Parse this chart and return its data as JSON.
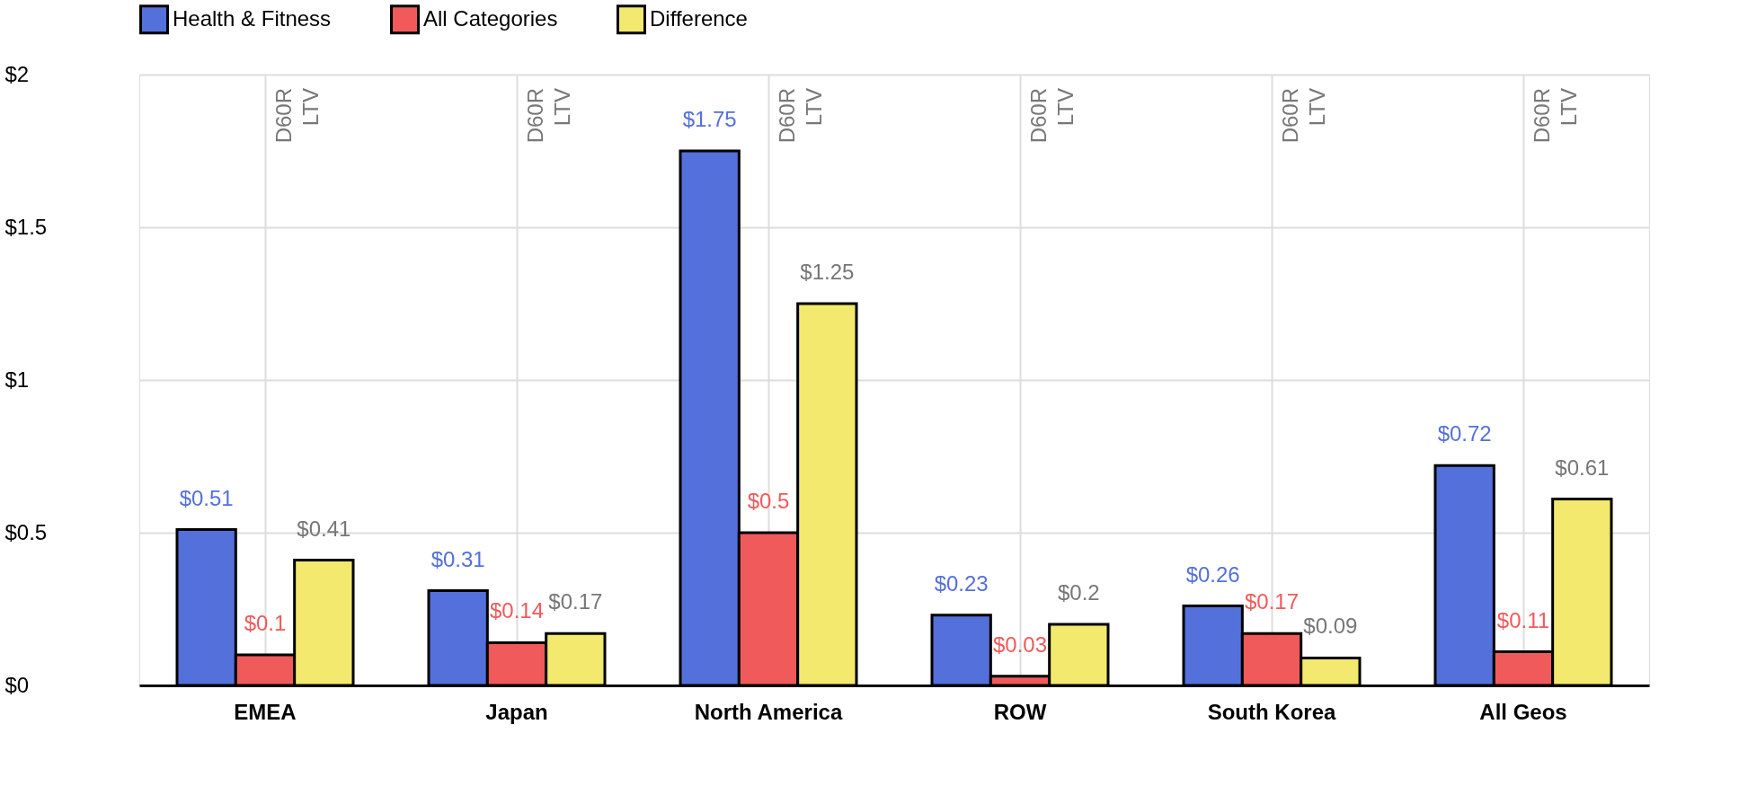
{
  "chart_data": {
    "type": "bar",
    "categories": [
      "EMEA",
      "Japan",
      "North America",
      "ROW",
      "South Korea",
      "All Geos"
    ],
    "series": [
      {
        "name": "Health & Fitness",
        "color": "#5470db",
        "values": [
          0.51,
          0.31,
          1.75,
          0.23,
          0.26,
          0.72
        ],
        "value_labels": [
          "$0.51",
          "$0.31",
          "$1.75",
          "$0.23",
          "$0.26",
          "$0.72"
        ]
      },
      {
        "name": "All Categories",
        "color": "#f05a5a",
        "values": [
          0.1,
          0.14,
          0.5,
          0.03,
          0.17,
          0.11
        ],
        "value_labels": [
          "$0.1",
          "$0.14",
          "$0.5",
          "$0.03",
          "$0.17",
          "$0.11"
        ]
      },
      {
        "name": "Difference",
        "color": "#f2e96e",
        "values": [
          0.41,
          0.17,
          1.25,
          0.2,
          0.09,
          0.61
        ],
        "value_labels": [
          "$0.41",
          "$0.17",
          "$1.25",
          "$0.2",
          "$0.09",
          "$0.61"
        ]
      }
    ],
    "ylim": [
      0,
      2
    ],
    "yticks": [
      {
        "value": 0,
        "label": "$0"
      },
      {
        "value": 0.5,
        "label": "$0.5"
      },
      {
        "value": 1,
        "label": "$1"
      },
      {
        "value": 1.5,
        "label": "$1.5"
      },
      {
        "value": 2,
        "label": "$2"
      }
    ],
    "annotations": [
      "D60R LTV",
      "D60R LTV",
      "D60R LTV",
      "D60R LTV",
      "D60R LTV",
      "D60R LTV"
    ],
    "grid": true,
    "legend": "top left"
  }
}
